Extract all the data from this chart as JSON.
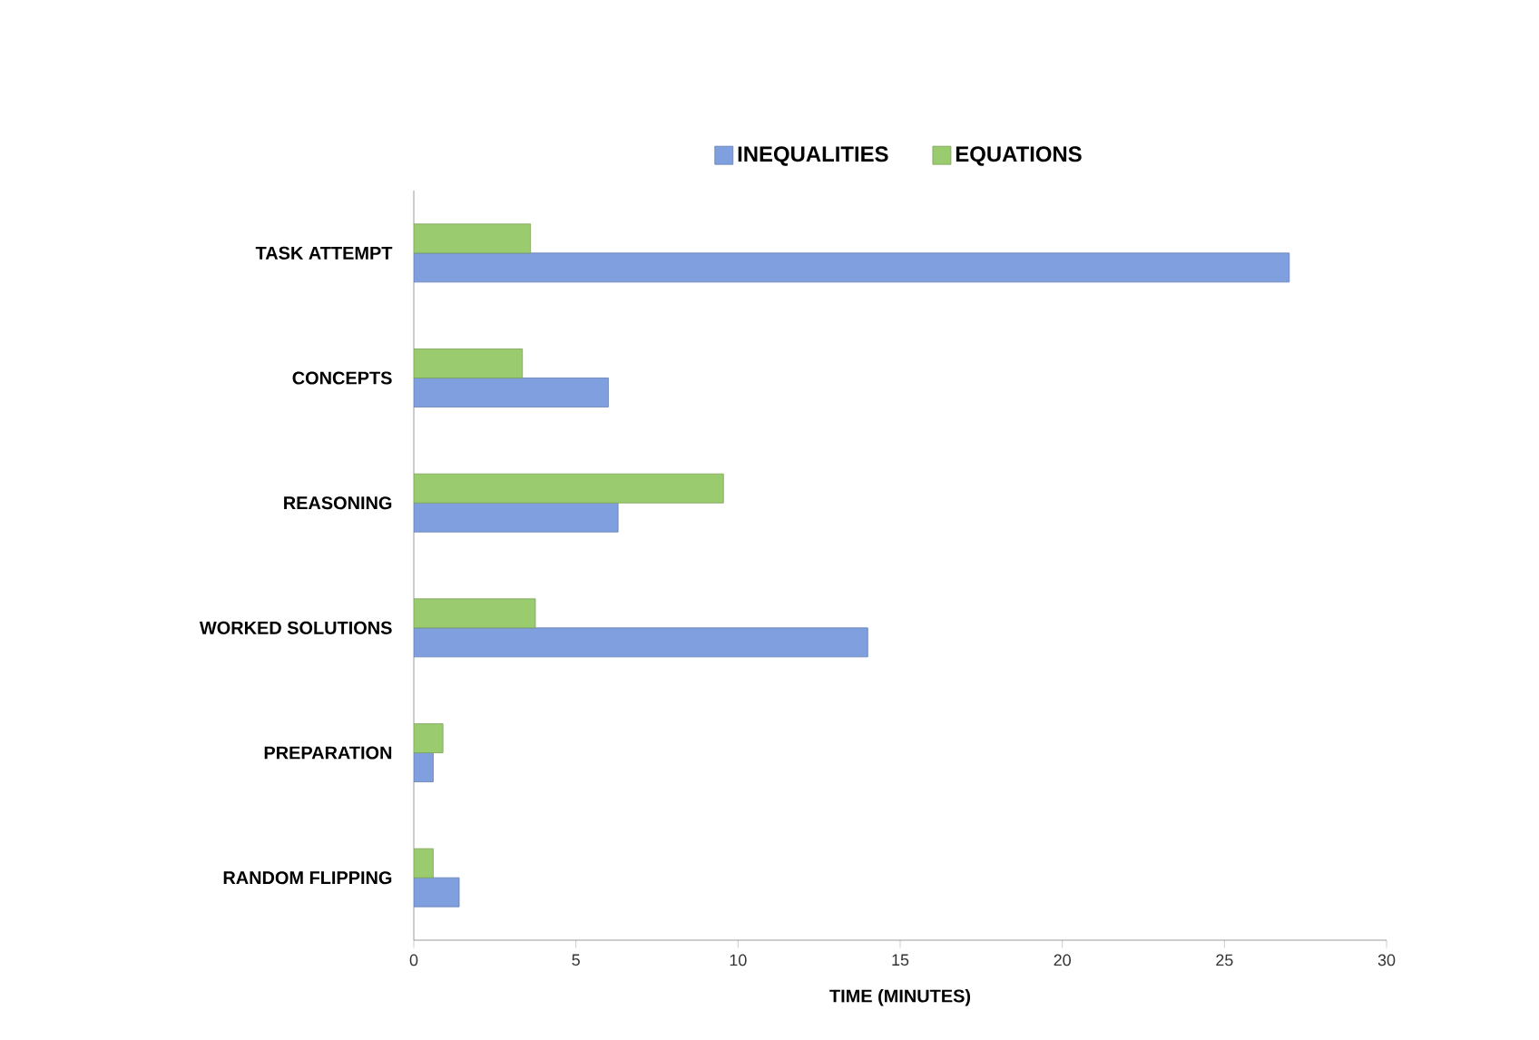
{
  "chart_data": {
    "type": "bar",
    "orientation": "horizontal",
    "xlabel": "TIME (MINUTES)",
    "categories": [
      "TASK ATTEMPT",
      "CONCEPTS",
      "REASONING",
      "WORKED SOLUTIONS",
      "PREPARATION",
      "RANDOM FLIPPING"
    ],
    "series": [
      {
        "name": "INEQUALITIES",
        "color": "#7f9fde",
        "values": [
          27.0,
          6.0,
          6.3,
          14.0,
          0.6,
          1.4
        ]
      },
      {
        "name": "EQUATIONS",
        "color": "#9bcb6f",
        "values": [
          3.6,
          3.35,
          9.55,
          3.75,
          0.9,
          0.6
        ]
      }
    ],
    "xlim": [
      0,
      30
    ],
    "xticks": [
      0,
      5,
      10,
      15,
      20,
      25,
      30
    ],
    "legend": "top",
    "grid": false
  }
}
